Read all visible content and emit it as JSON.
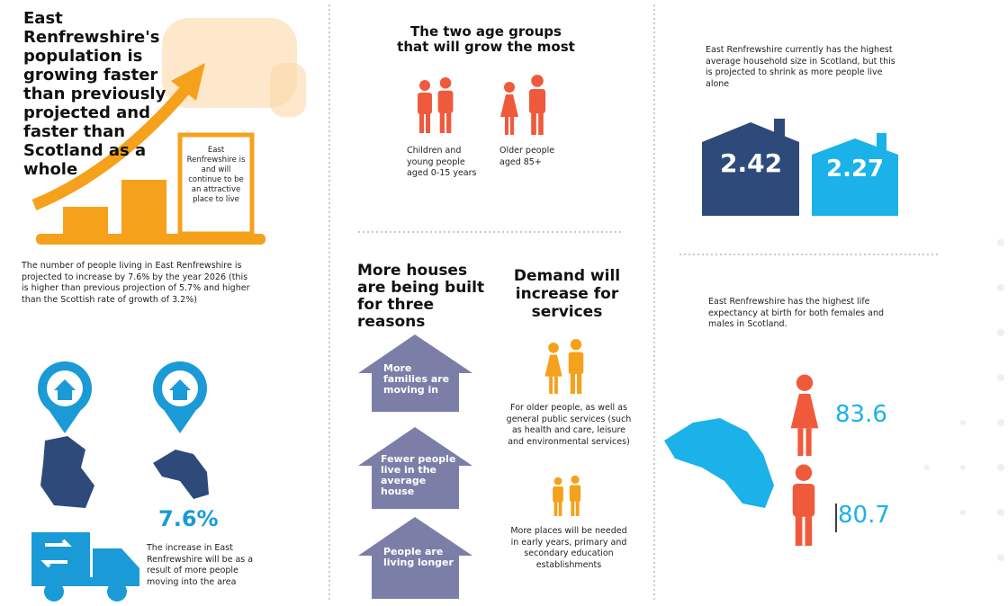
{
  "column1": {
    "headline": "East Renfrewshire's population is growing faster than previously projected and faster than Scotland as a whole",
    "box_text": "East Renfrewshire is and will continue to be an attractive place to live",
    "intro": "The number of people living in East Renfrewshire is projected to increase by 7.6% by the year 2026 (this is higher than previous projection of 5.7% and higher than the Scottish rate of growth of 3.2%)",
    "growth_rate": "7.6%",
    "migration_note": "The increase in East Renfrewshire will be as a result of more people moving into the area"
  },
  "column2": {
    "age_groups": {
      "title": "The two age groups that will grow the most",
      "groups": [
        "Children and young people aged 0-15 years",
        "Older people aged 85+"
      ]
    },
    "houses": {
      "title": "More houses are being built for three reasons",
      "reasons": [
        "More families are moving in",
        "Fewer people live in the average house",
        "People are living longer"
      ]
    },
    "services": {
      "title": "Demand will increase for services",
      "items": [
        "For older people, as well as general public services (such as health and care, leisure and environmental services)",
        "More places will be needed in early years, primary and secondary education establishments"
      ]
    }
  },
  "column3": {
    "household": {
      "text": "East Renfrewshire currently has the highest average household size in Scotland, but this is projected to shrink as more people live alone",
      "current": "2.42",
      "projected": "2.27"
    },
    "life_expectancy": {
      "text": "East Renfrewshire has the highest life expectancy at birth for both females and males in Scotland.",
      "female": "83.6",
      "male": "80.7"
    }
  }
}
